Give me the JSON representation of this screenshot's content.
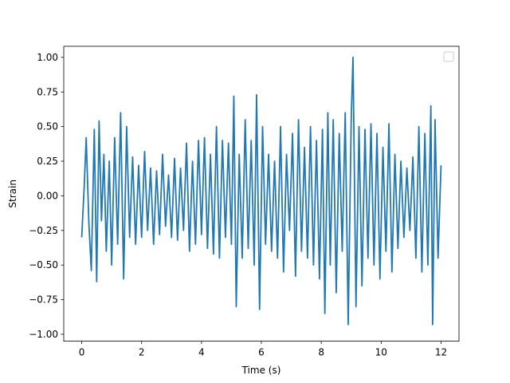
{
  "chart_data": {
    "type": "line",
    "title": "",
    "xlabel": "Time (s)",
    "ylabel": "Strain",
    "xlim": [
      -0.6,
      12.6
    ],
    "ylim": [
      -1.05,
      1.08
    ],
    "xticks": [
      0,
      2,
      4,
      6,
      8,
      10,
      12
    ],
    "xtick_labels": [
      "0",
      "2",
      "4",
      "6",
      "8",
      "10",
      "12"
    ],
    "yticks": [
      -1.0,
      -0.75,
      -0.5,
      -0.25,
      0.0,
      0.25,
      0.5,
      0.75,
      1.0
    ],
    "ytick_labels": [
      "−1.00",
      "−0.75",
      "−0.50",
      "−0.25",
      "0.00",
      "0.25",
      "0.50",
      "0.75",
      "1.00"
    ],
    "grid": false,
    "legend": {
      "placement": "top-right",
      "entries": []
    },
    "colors": {
      "series": "#1f77b4",
      "axes": "#000000",
      "background": "#ffffff"
    },
    "series": [
      {
        "x": [
          0.0,
          0.08,
          0.15,
          0.24,
          0.32,
          0.42,
          0.5,
          0.58,
          0.66,
          0.74,
          0.82,
          0.92,
          1.0,
          1.1,
          1.2,
          1.3,
          1.4,
          1.5,
          1.6,
          1.7,
          1.8,
          1.9,
          2.0,
          2.1,
          2.2,
          2.3,
          2.4,
          2.5,
          2.6,
          2.7,
          2.8,
          2.9,
          3.0,
          3.1,
          3.2,
          3.3,
          3.4,
          3.5,
          3.6,
          3.7,
          3.8,
          3.9,
          4.0,
          4.1,
          4.2,
          4.3,
          4.4,
          4.5,
          4.6,
          4.7,
          4.8,
          4.9,
          5.0,
          5.08,
          5.16,
          5.26,
          5.36,
          5.46,
          5.56,
          5.66,
          5.76,
          5.84,
          5.94,
          6.04,
          6.14,
          6.24,
          6.34,
          6.44,
          6.54,
          6.64,
          6.74,
          6.84,
          6.94,
          7.04,
          7.14,
          7.24,
          7.34,
          7.44,
          7.54,
          7.64,
          7.74,
          7.84,
          7.94,
          8.04,
          8.12,
          8.22,
          8.3,
          8.4,
          8.5,
          8.6,
          8.7,
          8.8,
          8.9,
          9.0,
          9.06,
          9.16,
          9.26,
          9.36,
          9.46,
          9.56,
          9.66,
          9.76,
          9.86,
          9.96,
          10.06,
          10.16,
          10.26,
          10.36,
          10.46,
          10.56,
          10.66,
          10.76,
          10.86,
          10.96,
          11.06,
          11.16,
          11.26,
          11.36,
          11.46,
          11.56,
          11.66,
          11.72,
          11.8,
          11.9,
          12.0
        ],
        "y": [
          -0.3,
          0.05,
          0.42,
          -0.2,
          -0.54,
          0.48,
          -0.62,
          0.54,
          -0.18,
          0.3,
          -0.4,
          0.25,
          -0.5,
          0.42,
          -0.35,
          0.6,
          -0.6,
          0.5,
          -0.3,
          0.28,
          -0.35,
          0.22,
          -0.3,
          0.32,
          -0.25,
          0.2,
          -0.35,
          0.18,
          -0.28,
          0.3,
          -0.22,
          0.15,
          -0.3,
          0.27,
          -0.32,
          0.2,
          -0.25,
          0.38,
          -0.4,
          0.25,
          -0.35,
          0.4,
          -0.28,
          0.42,
          -0.38,
          0.3,
          -0.42,
          0.5,
          -0.45,
          0.4,
          -0.3,
          0.38,
          -0.35,
          0.72,
          -0.8,
          0.3,
          -0.45,
          0.55,
          -0.38,
          0.4,
          -0.5,
          0.73,
          -0.82,
          0.5,
          -0.35,
          0.3,
          -0.4,
          0.25,
          -0.45,
          0.5,
          -0.55,
          0.3,
          -0.25,
          0.45,
          -0.58,
          0.55,
          -0.4,
          0.35,
          -0.45,
          0.5,
          -0.5,
          0.4,
          -0.6,
          0.48,
          -0.85,
          0.6,
          -0.5,
          0.55,
          -0.7,
          0.45,
          -0.4,
          0.6,
          -0.93,
          0.55,
          1.0,
          -0.8,
          0.5,
          -0.65,
          0.48,
          -0.45,
          0.52,
          -0.5,
          0.45,
          -0.6,
          0.35,
          -0.4,
          0.52,
          -0.55,
          0.3,
          -0.38,
          0.25,
          -0.3,
          0.2,
          -0.25,
          0.28,
          -0.45,
          0.5,
          -0.55,
          0.45,
          -0.5,
          0.65,
          -0.93,
          0.55,
          -0.45,
          0.22
        ]
      }
    ]
  }
}
